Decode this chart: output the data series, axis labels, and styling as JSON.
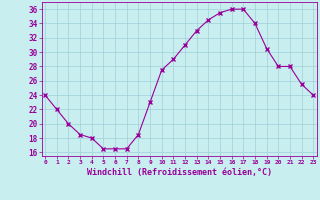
{
  "x": [
    0,
    1,
    2,
    3,
    4,
    5,
    6,
    7,
    8,
    9,
    10,
    11,
    12,
    13,
    14,
    15,
    16,
    17,
    18,
    19,
    20,
    21,
    22,
    23
  ],
  "y": [
    24,
    22,
    20,
    18.5,
    18,
    16.5,
    16.5,
    16.5,
    18.5,
    23,
    27.5,
    29,
    31,
    33,
    34.5,
    35.5,
    36,
    36,
    34,
    30.5,
    28,
    28,
    25.5,
    24
  ],
  "line_color": "#990099",
  "marker": "x",
  "marker_color": "#990099",
  "bg_color": "#c8eef0",
  "grid_color": "#a0d0d8",
  "xlabel": "Windchill (Refroidissement éolien,°C)",
  "xlabel_color": "#990099",
  "tick_color": "#990099",
  "ylim": [
    15.5,
    37
  ],
  "yticks": [
    16,
    18,
    20,
    22,
    24,
    26,
    28,
    30,
    32,
    34,
    36
  ],
  "xticks": [
    0,
    1,
    2,
    3,
    4,
    5,
    6,
    7,
    8,
    9,
    10,
    11,
    12,
    13,
    14,
    15,
    16,
    17,
    18,
    19,
    20,
    21,
    22,
    23
  ],
  "xlim": [
    -0.3,
    23.3
  ]
}
